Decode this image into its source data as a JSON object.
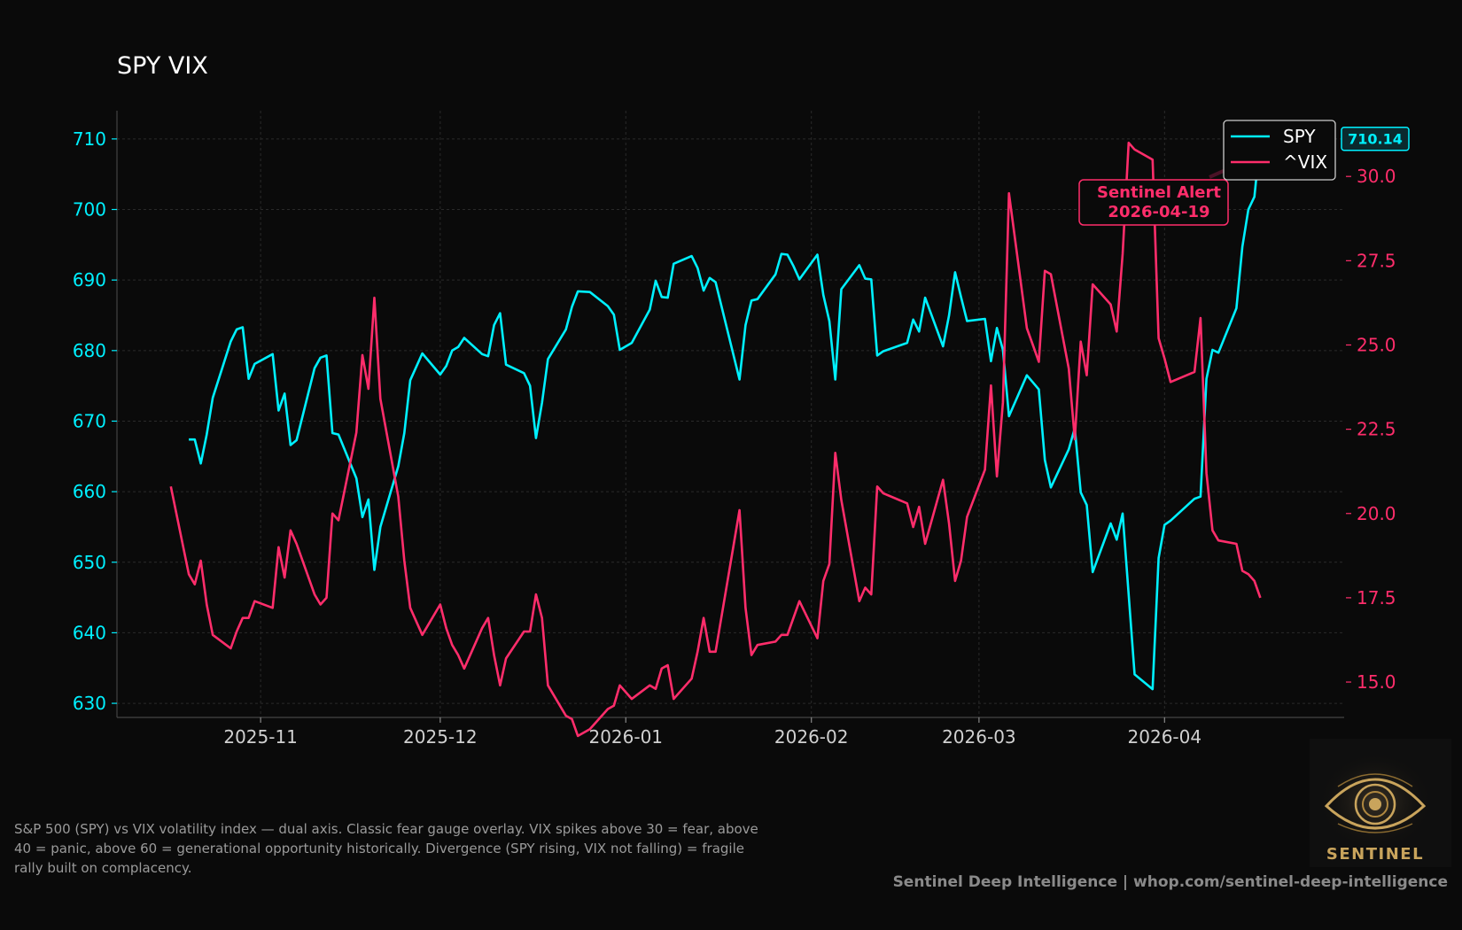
{
  "chart_data": {
    "type": "line",
    "title": "SPY VIX",
    "x_tick_labels": [
      "2025-11",
      "2025-12",
      "2026-01",
      "2026-02",
      "2026-03",
      "2026-04"
    ],
    "y_left": {
      "range": [
        628,
        714
      ],
      "ticks": [
        630,
        640,
        650,
        660,
        670,
        680,
        690,
        700,
        710
      ],
      "color": "#00f0ff"
    },
    "y_right": {
      "range": [
        13.95,
        31.95
      ],
      "ticks": [
        "15.0",
        "17.5",
        "20.0",
        "22.5",
        "25.0",
        "27.5",
        "30.0"
      ],
      "color": "#ff2d6b"
    },
    "grid": true,
    "legend": {
      "placement": "top-right",
      "entries": [
        "SPY",
        "^VIX"
      ]
    },
    "series": [
      {
        "name": "SPY",
        "axis": "left",
        "color": "#00f0ff",
        "points": [
          [
            "2025-10-20",
            667.4
          ],
          [
            "2025-10-21",
            667.4
          ],
          [
            "2025-10-22",
            664
          ],
          [
            "2025-10-23",
            668.1
          ],
          [
            "2025-10-24",
            673.3
          ],
          [
            "2025-10-27",
            681.3
          ],
          [
            "2025-10-28",
            683
          ],
          [
            "2025-10-29",
            683.3
          ],
          [
            "2025-10-30",
            676
          ],
          [
            "2025-10-31",
            678.1
          ],
          [
            "2025-11-03",
            679.5
          ],
          [
            "2025-11-04",
            671.5
          ],
          [
            "2025-11-05",
            673.9
          ],
          [
            "2025-11-06",
            666.6
          ],
          [
            "2025-11-07",
            667.3
          ],
          [
            "2025-11-10",
            677.5
          ],
          [
            "2025-11-11",
            679
          ],
          [
            "2025-11-12",
            679.3
          ],
          [
            "2025-11-13",
            668.3
          ],
          [
            "2025-11-14",
            668.1
          ],
          [
            "2025-11-17",
            661.9
          ],
          [
            "2025-11-18",
            656.4
          ],
          [
            "2025-11-19",
            658.9
          ],
          [
            "2025-11-20",
            648.9
          ],
          [
            "2025-11-21",
            655
          ],
          [
            "2025-11-24",
            663.6
          ],
          [
            "2025-11-25",
            668.3
          ],
          [
            "2025-11-26",
            675.8
          ],
          [
            "2025-11-28",
            679.6
          ],
          [
            "2025-12-01",
            676.6
          ],
          [
            "2025-12-02",
            677.8
          ],
          [
            "2025-12-03",
            680
          ],
          [
            "2025-12-04",
            680.5
          ],
          [
            "2025-12-05",
            681.8
          ],
          [
            "2025-12-08",
            679.5
          ],
          [
            "2025-12-09",
            679.2
          ],
          [
            "2025-12-10",
            683.6
          ],
          [
            "2025-12-11",
            685.3
          ],
          [
            "2025-12-12",
            678
          ],
          [
            "2025-12-15",
            676.8
          ],
          [
            "2025-12-16",
            675
          ],
          [
            "2025-12-17",
            667.6
          ],
          [
            "2025-12-18",
            672.6
          ],
          [
            "2025-12-19",
            678.8
          ],
          [
            "2025-12-22",
            683
          ],
          [
            "2025-12-23",
            686.2
          ],
          [
            "2025-12-24",
            688.4
          ],
          [
            "2025-12-26",
            688.3
          ],
          [
            "2025-12-29",
            686.3
          ],
          [
            "2025-12-30",
            685.1
          ],
          [
            "2025-12-31",
            680.1
          ],
          [
            "2026-01-02",
            681.1
          ],
          [
            "2026-01-05",
            685.8
          ],
          [
            "2026-01-06",
            689.9
          ],
          [
            "2026-01-07",
            687.6
          ],
          [
            "2026-01-08",
            687.5
          ],
          [
            "2026-01-09",
            692.3
          ],
          [
            "2026-01-12",
            693.4
          ],
          [
            "2026-01-13",
            691.7
          ],
          [
            "2026-01-14",
            688.5
          ],
          [
            "2026-01-15",
            690.3
          ],
          [
            "2026-01-16",
            689.7
          ],
          [
            "2026-01-20",
            675.9
          ],
          [
            "2026-01-21",
            683.6
          ],
          [
            "2026-01-22",
            687.1
          ],
          [
            "2026-01-23",
            687.3
          ],
          [
            "2026-01-26",
            690.8
          ],
          [
            "2026-01-27",
            693.7
          ],
          [
            "2026-01-28",
            693.6
          ],
          [
            "2026-01-29",
            692
          ],
          [
            "2026-01-30",
            690.1
          ],
          [
            "2026-02-02",
            693.6
          ],
          [
            "2026-02-03",
            687.9
          ],
          [
            "2026-02-04",
            684.2
          ],
          [
            "2026-02-05",
            675.9
          ],
          [
            "2026-02-06",
            688.7
          ],
          [
            "2026-02-09",
            692.1
          ],
          [
            "2026-02-10",
            690.2
          ],
          [
            "2026-02-11",
            690.1
          ],
          [
            "2026-02-12",
            679.3
          ],
          [
            "2026-02-13",
            679.9
          ],
          [
            "2026-02-17",
            681.1
          ],
          [
            "2026-02-18",
            684.4
          ],
          [
            "2026-02-19",
            682.7
          ],
          [
            "2026-02-20",
            687.5
          ],
          [
            "2026-02-23",
            680.6
          ],
          [
            "2026-02-24",
            685
          ],
          [
            "2026-02-25",
            691.1
          ],
          [
            "2026-02-26",
            687.6
          ],
          [
            "2026-02-27",
            684.2
          ],
          [
            "2026-03-02",
            684.5
          ],
          [
            "2026-03-03",
            678.5
          ],
          [
            "2026-03-04",
            683.2
          ],
          [
            "2026-03-05",
            680.1
          ],
          [
            "2026-03-06",
            670.7
          ],
          [
            "2026-03-09",
            676.5
          ],
          [
            "2026-03-10",
            675.5
          ],
          [
            "2026-03-11",
            674.5
          ],
          [
            "2026-03-12",
            664.5
          ],
          [
            "2026-03-13",
            660.6
          ],
          [
            "2026-03-16",
            666
          ],
          [
            "2026-03-17",
            669
          ],
          [
            "2026-03-18",
            659.9
          ],
          [
            "2026-03-19",
            658.1
          ],
          [
            "2026-03-20",
            648.6
          ],
          [
            "2026-03-23",
            655.5
          ],
          [
            "2026-03-24",
            653.2
          ],
          [
            "2026-03-25",
            656.9
          ],
          [
            "2026-03-27",
            634.1
          ],
          [
            "2026-03-30",
            632
          ],
          [
            "2026-03-31",
            650.6
          ],
          [
            "2026-04-01",
            655.3
          ],
          [
            "2026-04-02",
            655.9
          ],
          [
            "2026-04-06",
            659
          ],
          [
            "2026-04-07",
            659.3
          ],
          [
            "2026-04-08",
            676
          ],
          [
            "2026-04-09",
            680.1
          ],
          [
            "2026-04-10",
            679.7
          ],
          [
            "2026-04-13",
            686
          ],
          [
            "2026-04-14",
            694.7
          ],
          [
            "2026-04-15",
            700
          ],
          [
            "2026-04-16",
            701.8
          ],
          [
            "2026-04-17",
            710.14
          ]
        ]
      },
      {
        "name": "^VIX",
        "axis": "right",
        "color": "#ff2d6b",
        "points": [
          [
            "2025-10-17",
            20.8
          ],
          [
            "2025-10-20",
            18.2
          ],
          [
            "2025-10-21",
            17.9
          ],
          [
            "2025-10-22",
            18.6
          ],
          [
            "2025-10-23",
            17.3
          ],
          [
            "2025-10-24",
            16.4
          ],
          [
            "2025-10-27",
            16
          ],
          [
            "2025-10-28",
            16.5
          ],
          [
            "2025-10-29",
            16.9
          ],
          [
            "2025-10-30",
            16.9
          ],
          [
            "2025-10-31",
            17.4
          ],
          [
            "2025-11-03",
            17.2
          ],
          [
            "2025-11-04",
            19
          ],
          [
            "2025-11-05",
            18.1
          ],
          [
            "2025-11-06",
            19.5
          ],
          [
            "2025-11-07",
            19.1
          ],
          [
            "2025-11-10",
            17.6
          ],
          [
            "2025-11-11",
            17.3
          ],
          [
            "2025-11-12",
            17.5
          ],
          [
            "2025-11-13",
            20
          ],
          [
            "2025-11-14",
            19.8
          ],
          [
            "2025-11-17",
            22.4
          ],
          [
            "2025-11-18",
            24.7
          ],
          [
            "2025-11-19",
            23.7
          ],
          [
            "2025-11-20",
            26.4
          ],
          [
            "2025-11-21",
            23.4
          ],
          [
            "2025-11-24",
            20.5
          ],
          [
            "2025-11-25",
            18.6
          ],
          [
            "2025-11-26",
            17.2
          ],
          [
            "2025-11-28",
            16.4
          ],
          [
            "2025-12-01",
            17.3
          ],
          [
            "2025-12-02",
            16.6
          ],
          [
            "2025-12-03",
            16.1
          ],
          [
            "2025-12-04",
            15.8
          ],
          [
            "2025-12-05",
            15.4
          ],
          [
            "2025-12-08",
            16.6
          ],
          [
            "2025-12-09",
            16.9
          ],
          [
            "2025-12-10",
            15.8
          ],
          [
            "2025-12-11",
            14.9
          ],
          [
            "2025-12-12",
            15.7
          ],
          [
            "2025-12-15",
            16.5
          ],
          [
            "2025-12-16",
            16.5
          ],
          [
            "2025-12-17",
            17.6
          ],
          [
            "2025-12-18",
            16.9
          ],
          [
            "2025-12-19",
            14.9
          ],
          [
            "2025-12-22",
            14
          ],
          [
            "2025-12-23",
            13.9
          ],
          [
            "2025-12-24",
            13.4
          ],
          [
            "2025-12-26",
            13.6
          ],
          [
            "2025-12-29",
            14.2
          ],
          [
            "2025-12-30",
            14.3
          ],
          [
            "2025-12-31",
            14.9
          ],
          [
            "2026-01-02",
            14.5
          ],
          [
            "2026-01-05",
            14.9
          ],
          [
            "2026-01-06",
            14.8
          ],
          [
            "2026-01-07",
            15.4
          ],
          [
            "2026-01-08",
            15.5
          ],
          [
            "2026-01-09",
            14.5
          ],
          [
            "2026-01-12",
            15.1
          ],
          [
            "2026-01-13",
            15.9
          ],
          [
            "2026-01-14",
            16.9
          ],
          [
            "2026-01-15",
            15.9
          ],
          [
            "2026-01-16",
            15.9
          ],
          [
            "2026-01-20",
            20.1
          ],
          [
            "2026-01-21",
            17.2
          ],
          [
            "2026-01-22",
            15.8
          ],
          [
            "2026-01-23",
            16.1
          ],
          [
            "2026-01-26",
            16.2
          ],
          [
            "2026-01-27",
            16.4
          ],
          [
            "2026-01-28",
            16.4
          ],
          [
            "2026-01-30",
            17.4
          ],
          [
            "2026-02-02",
            16.3
          ],
          [
            "2026-02-03",
            18
          ],
          [
            "2026-02-04",
            18.5
          ],
          [
            "2026-02-05",
            21.8
          ],
          [
            "2026-02-06",
            20.4
          ],
          [
            "2026-02-09",
            17.4
          ],
          [
            "2026-02-10",
            17.8
          ],
          [
            "2026-02-11",
            17.6
          ],
          [
            "2026-02-12",
            20.8
          ],
          [
            "2026-02-13",
            20.6
          ],
          [
            "2026-02-17",
            20.3
          ],
          [
            "2026-02-18",
            19.6
          ],
          [
            "2026-02-19",
            20.2
          ],
          [
            "2026-02-20",
            19.1
          ],
          [
            "2026-02-23",
            21
          ],
          [
            "2026-02-24",
            19.7
          ],
          [
            "2026-02-25",
            18
          ],
          [
            "2026-02-26",
            18.6
          ],
          [
            "2026-02-27",
            19.9
          ],
          [
            "2026-03-02",
            21.3
          ],
          [
            "2026-03-03",
            23.8
          ],
          [
            "2026-03-04",
            21.1
          ],
          [
            "2026-03-05",
            23.3
          ],
          [
            "2026-03-06",
            29.5
          ],
          [
            "2026-03-09",
            25.5
          ],
          [
            "2026-03-10",
            25
          ],
          [
            "2026-03-11",
            24.5
          ],
          [
            "2026-03-12",
            27.2
          ],
          [
            "2026-03-13",
            27.1
          ],
          [
            "2026-03-16",
            24.3
          ],
          [
            "2026-03-17",
            22.2
          ],
          [
            "2026-03-18",
            25.1
          ],
          [
            "2026-03-19",
            24.1
          ],
          [
            "2026-03-20",
            26.8
          ],
          [
            "2026-03-23",
            26.2
          ],
          [
            "2026-03-24",
            25.4
          ],
          [
            "2026-03-25",
            27.7
          ],
          [
            "2026-03-26",
            31
          ],
          [
            "2026-03-27",
            30.8
          ],
          [
            "2026-03-30",
            30.5
          ],
          [
            "2026-03-31",
            25.2
          ],
          [
            "2026-04-01",
            24.6
          ],
          [
            "2026-04-02",
            23.9
          ],
          [
            "2026-04-06",
            24.2
          ],
          [
            "2026-04-07",
            25.8
          ],
          [
            "2026-04-08",
            21.2
          ],
          [
            "2026-04-09",
            19.5
          ],
          [
            "2026-04-10",
            19.2
          ],
          [
            "2026-04-13",
            19.1
          ],
          [
            "2026-04-14",
            18.3
          ],
          [
            "2026-04-15",
            18.2
          ],
          [
            "2026-04-16",
            18
          ],
          [
            "2026-04-17",
            17.5
          ]
        ]
      }
    ],
    "last_value_label": "710.14",
    "annotation": {
      "text": "Sentinel Alert\n2026-04-19",
      "date": "2026-04-19",
      "color": "#ff2d6b"
    }
  },
  "note": "S&P 500 (SPY) vs VIX volatility index — dual axis. Classic fear gauge overlay. VIX spikes above 30 = fear, above 40 = panic, above 60 = generational opportunity historically. Divergence (SPY rising, VIX not falling) = fragile rally built on complacency.",
  "footer": "Sentinel Deep Intelligence  |  whop.com/sentinel-deep-intelligence",
  "logo": {
    "text": "SENTINEL",
    "icon": "eye-icon",
    "color": "#c9a45c"
  }
}
